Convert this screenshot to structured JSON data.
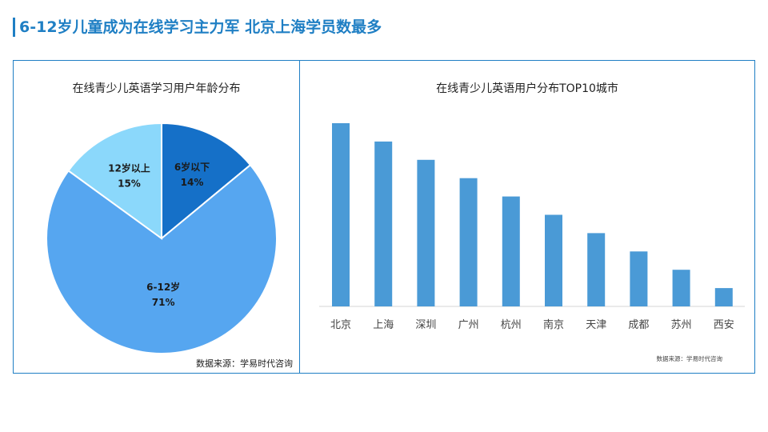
{
  "page": {
    "title": "6-12岁儿童成为在线学习主力军  北京上海学员数最多"
  },
  "chart_data": [
    {
      "type": "pie",
      "title": "在线青少儿英语学习用户年龄分布",
      "source": "数据来源：学易时代咨询",
      "slices": [
        {
          "name": "6岁以下",
          "value": 14,
          "label": "14%",
          "color": "#1570c8"
        },
        {
          "name": "6-12岁",
          "value": 71,
          "label": "71%",
          "color": "#56a6f0"
        },
        {
          "name": "12岁以上",
          "value": 15,
          "label": "15%",
          "color": "#8bd8fb"
        }
      ]
    },
    {
      "type": "bar",
      "title": "在线青少儿英语用户分布TOP10城市",
      "source": "数据来源：学易时代咨询",
      "categories": [
        "北京",
        "上海",
        "深圳",
        "广州",
        "杭州",
        "南京",
        "天津",
        "成都",
        "苏州",
        "西安"
      ],
      "values": [
        10,
        9,
        8,
        7,
        6,
        5,
        4,
        3,
        2,
        1
      ],
      "ylim": [
        0,
        10
      ],
      "color": "#4a9ad6",
      "grid": false
    }
  ]
}
